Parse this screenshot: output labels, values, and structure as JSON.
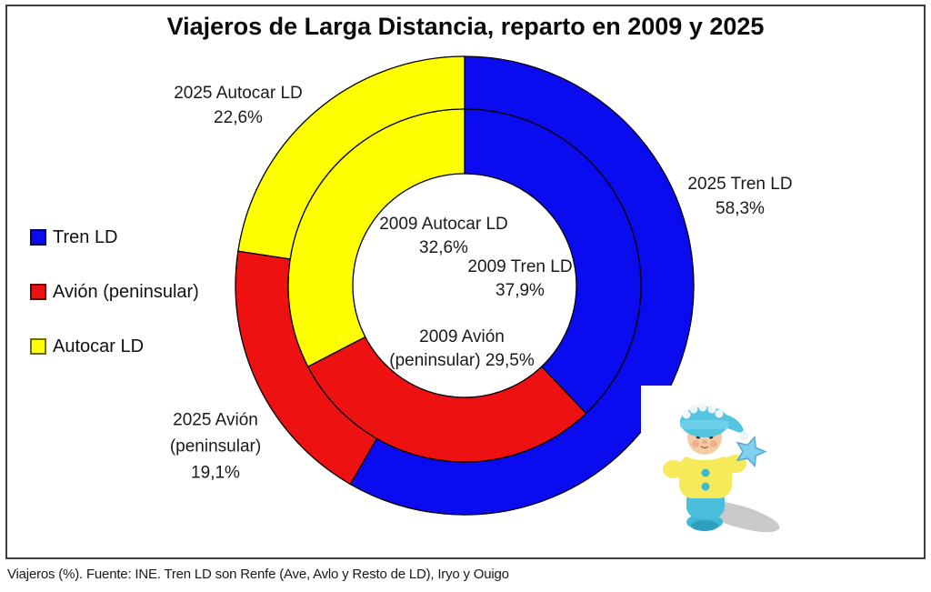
{
  "title": "Viajeros de Larga Distancia, reparto en 2009 y 2025",
  "footer": "Viajeros (%). Fuente: INE. Tren LD son Renfe (Ave, Avlo y Resto de LD), Iryo y Ouigo",
  "legend": {
    "items": [
      {
        "label": "Tren LD",
        "color": "#0b0bf0",
        "border": "#00006e"
      },
      {
        "label": "Avión (peninsular)",
        "color": "#ee1111",
        "border": "#6e0000"
      },
      {
        "label": "Autocar LD",
        "color": "#ffff00",
        "border": "#6e6e00"
      }
    ]
  },
  "callouts": {
    "autocar_2025": "2025 Autocar LD\n22,6%",
    "tren_2025": "2025 Tren LD\n58,3%",
    "avion_2025": "2025 Avión\n(peninsular)\n19,1%",
    "autocar_2009": "2009 Autocar LD\n32,6%",
    "tren_2009": "2009 Tren LD\n37,9%",
    "avion_2009": "2009 Avión\n(peninsular) 29,5%"
  },
  "chart_data": {
    "type": "pie",
    "subtype": "nested-donut",
    "title": "Viajeros de Larga Distancia, reparto en 2009 y 2025",
    "unit": "%",
    "start_angle_deg": 0,
    "direction": "clockwise",
    "legend_position": "left",
    "rings": [
      {
        "year": "2025",
        "position": "outer",
        "segments": [
          {
            "label": "Tren LD",
            "value": 58.3,
            "color": "#0b0bf0"
          },
          {
            "label": "Avión (peninsular)",
            "value": 19.1,
            "color": "#ee1111"
          },
          {
            "label": "Autocar LD",
            "value": 22.6,
            "color": "#ffff00"
          }
        ]
      },
      {
        "year": "2009",
        "position": "inner",
        "segments": [
          {
            "label": "Tren LD",
            "value": 37.9,
            "color": "#0b0bf0"
          },
          {
            "label": "Avión (peninsular)",
            "value": 29.5,
            "color": "#ee1111"
          },
          {
            "label": "Autocar LD",
            "value": 32.6,
            "color": "#ffff00"
          }
        ]
      }
    ]
  }
}
